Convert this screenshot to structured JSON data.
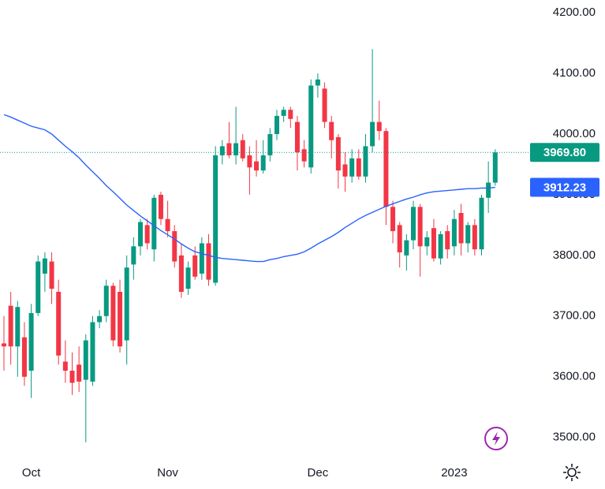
{
  "chart_data": {
    "type": "candlestick",
    "categories": [
      null,
      null,
      null,
      null,
      "Oct",
      null,
      null,
      null,
      null,
      null,
      null,
      null,
      null,
      null,
      null,
      null,
      null,
      null,
      null,
      null,
      null,
      null,
      null,
      null,
      "Nov",
      null,
      null,
      null,
      null,
      null,
      null,
      null,
      null,
      null,
      null,
      null,
      null,
      null,
      null,
      null,
      null,
      null,
      null,
      null,
      null,
      null,
      "Dec",
      null,
      null,
      null,
      null,
      null,
      null,
      null,
      null,
      null,
      null,
      null,
      null,
      null,
      null,
      null,
      null,
      null,
      null,
      null,
      "2023",
      null,
      null,
      null,
      null,
      null,
      null
    ],
    "open": [
      3655,
      3717,
      3650,
      3665,
      3610,
      3705,
      3770,
      3790,
      3740,
      3625,
      3610,
      3620,
      3595,
      3592,
      3690,
      3700,
      3750,
      3740,
      3660,
      3785,
      3815,
      3850,
      3810,
      3900,
      3860,
      3840,
      3800,
      3745,
      3800,
      3770,
      3820,
      3755,
      3965,
      3985,
      3965,
      3990,
      3965,
      3955,
      3940,
      3965,
      4000,
      4030,
      4040,
      4020,
      3975,
      3945,
      4080,
      4075,
      4020,
      3995,
      3950,
      3930,
      3960,
      3930,
      3980,
      4020,
      4005,
      3880,
      3850,
      3800,
      3825,
      3880,
      3815,
      3845,
      3795,
      3840,
      3815,
      3870,
      3820,
      3850,
      3810,
      3895,
      3920
    ],
    "high": [
      3700,
      3740,
      3725,
      3690,
      3720,
      3800,
      3805,
      3805,
      3760,
      3660,
      3640,
      3650,
      3670,
      3700,
      3710,
      3760,
      3755,
      3760,
      3800,
      3830,
      3860,
      3860,
      3900,
      3905,
      3890,
      3850,
      3820,
      3790,
      3815,
      3830,
      3835,
      3980,
      3990,
      4020,
      4045,
      4000,
      3980,
      3990,
      3990,
      4010,
      4040,
      4045,
      4045,
      4030,
      3990,
      4090,
      4100,
      4085,
      4030,
      4000,
      3970,
      3975,
      3975,
      4000,
      4140,
      4055,
      4010,
      3890,
      3855,
      3835,
      3890,
      3885,
      3840,
      3860,
      3840,
      3850,
      3875,
      3885,
      3855,
      3860,
      3900,
      3955,
      3975
    ],
    "low": [
      3610,
      3620,
      3600,
      3585,
      3565,
      3700,
      3740,
      3720,
      3620,
      3590,
      3570,
      3575,
      3492,
      3585,
      3680,
      3690,
      3650,
      3640,
      3620,
      3760,
      3800,
      3810,
      3790,
      3850,
      3830,
      3780,
      3730,
      3735,
      3760,
      3760,
      3750,
      3750,
      3950,
      3960,
      3950,
      3955,
      3900,
      3930,
      3935,
      3955,
      3990,
      4020,
      4010,
      3940,
      3945,
      3935,
      4060,
      4010,
      3960,
      3910,
      3905,
      3920,
      3925,
      3920,
      3970,
      3990,
      3850,
      3820,
      3780,
      3775,
      3810,
      3765,
      3800,
      3790,
      3785,
      3795,
      3800,
      3800,
      3805,
      3800,
      3800,
      3870,
      3915
    ],
    "close": [
      3650,
      3650,
      3715,
      3600,
      3705,
      3790,
      3795,
      3745,
      3635,
      3610,
      3590,
      3592,
      3660,
      3690,
      3700,
      3750,
      3660,
      3650,
      3780,
      3815,
      3855,
      3820,
      3895,
      3860,
      3840,
      3790,
      3740,
      3780,
      3765,
      3820,
      3760,
      3965,
      3980,
      3965,
      3985,
      3960,
      3945,
      3940,
      3965,
      4000,
      4030,
      4040,
      4025,
      3970,
      3955,
      4080,
      4090,
      4020,
      3990,
      3940,
      3930,
      3960,
      3930,
      3980,
      4020,
      4005,
      3880,
      3840,
      3805,
      3825,
      3880,
      3815,
      3830,
      3795,
      3835,
      3810,
      3860,
      3820,
      3850,
      3810,
      3895,
      3920,
      3969.8
    ],
    "up_color": "#089981",
    "down_color": "#f23645",
    "moving_average": {
      "color": "#2962ff",
      "values": [
        4032,
        4028,
        4023,
        4018,
        4013,
        4010,
        4007,
        4000,
        3990,
        3980,
        3971,
        3961,
        3949,
        3938,
        3927,
        3915,
        3905,
        3894,
        3883,
        3874,
        3865,
        3857,
        3849,
        3841,
        3834,
        3827,
        3819,
        3812,
        3806,
        3803,
        3800,
        3797,
        3795,
        3794,
        3793,
        3792,
        3791,
        3790,
        3790,
        3793,
        3795,
        3798,
        3800,
        3802,
        3806,
        3812,
        3819,
        3825,
        3831,
        3838,
        3846,
        3853,
        3860,
        3866,
        3871,
        3876,
        3881,
        3885,
        3889,
        3893,
        3896,
        3900,
        3903,
        3905,
        3906,
        3907,
        3908,
        3909,
        3910,
        3910,
        3911,
        3911,
        3912.23
      ]
    },
    "price_tags": [
      {
        "value": 3969.8,
        "label": "3969.80",
        "color": "#089981"
      },
      {
        "value": 3912.23,
        "label": "3912.23",
        "color": "#2962ff"
      }
    ],
    "ylim": [
      3467,
      4221
    ],
    "yticks": [
      {
        "value": 3500,
        "label": "3500.00"
      },
      {
        "value": 3600,
        "label": "3600.00"
      },
      {
        "value": 3700,
        "label": "3700.00"
      },
      {
        "value": 3800,
        "label": "3800.00"
      },
      {
        "value": 3900,
        "label": "3900.00"
      },
      {
        "value": 4000,
        "label": "4000.00"
      },
      {
        "value": 4100,
        "label": "4100.00"
      },
      {
        "value": 4200,
        "label": "4200.00"
      }
    ],
    "grid": false
  }
}
